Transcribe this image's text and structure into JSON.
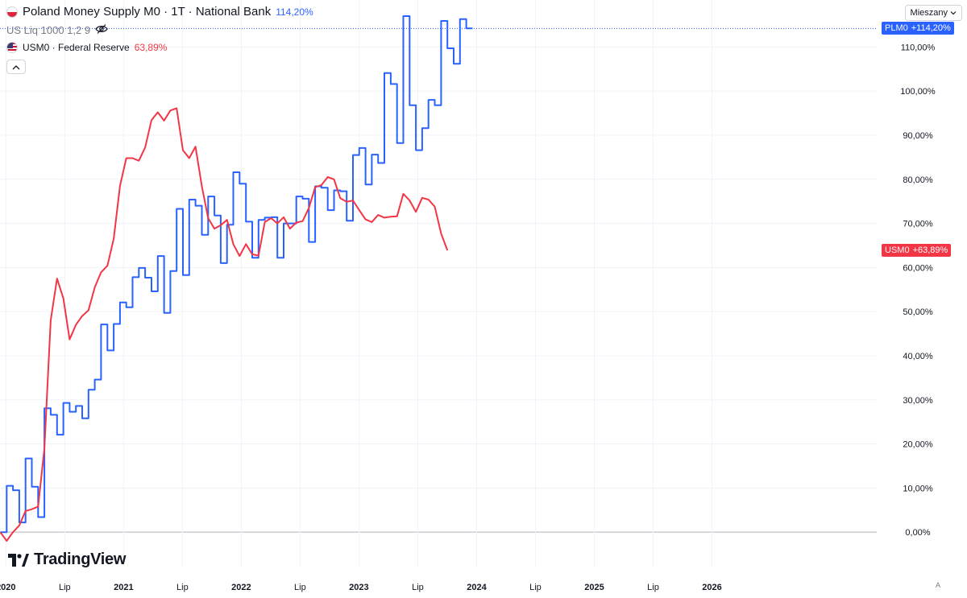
{
  "legend": {
    "main": {
      "title": "Poland Money Supply M0 · 1T · National Bank",
      "value": "114,20%"
    },
    "indicator": {
      "title": "US Liq 1000 1,2 9"
    },
    "compare": {
      "title": "USM0 · Federal Reserve",
      "value": "63,89%"
    }
  },
  "scale_mode": "Mieszany",
  "watermark": "TradingView",
  "auto_label": "A",
  "colors": {
    "plm0": "#2962ff",
    "usm0": "#f23645",
    "grid": "#f0f3fa",
    "axis_text": "#131722"
  },
  "icons": {
    "hide": "eye-off-icon",
    "collapse": "chevron-up-icon",
    "dropdown": "chevron-down-icon"
  },
  "badges": {
    "plm0": {
      "code": "PLM0",
      "value": "+114,20%"
    },
    "usm0": {
      "code": "USM0",
      "value": "+63,89%"
    }
  },
  "chart_data": {
    "type": "line",
    "x_unit": "years",
    "xlim": [
      2019.95,
      2027.4
    ],
    "ylim": [
      -8,
      117
    ],
    "y_ticks": [
      0,
      10,
      20,
      30,
      40,
      50,
      60,
      70,
      80,
      90,
      100,
      110
    ],
    "y_tick_labels": [
      "0,00%",
      "10,00%",
      "20,00%",
      "30,00%",
      "40,00%",
      "50,00%",
      "60,00%",
      "70,00%",
      "80,00%",
      "90,00%",
      "100,00%",
      "110,00%"
    ],
    "x_ticks": [
      {
        "x": 2020.0,
        "label": "2020",
        "bold": true
      },
      {
        "x": 2020.5,
        "label": "Lip",
        "bold": false
      },
      {
        "x": 2021.0,
        "label": "2021",
        "bold": true
      },
      {
        "x": 2021.5,
        "label": "Lip",
        "bold": false
      },
      {
        "x": 2022.0,
        "label": "2022",
        "bold": true
      },
      {
        "x": 2022.5,
        "label": "Lip",
        "bold": false
      },
      {
        "x": 2023.0,
        "label": "2023",
        "bold": true
      },
      {
        "x": 2023.5,
        "label": "Lip",
        "bold": false
      },
      {
        "x": 2024.0,
        "label": "2024",
        "bold": true
      },
      {
        "x": 2024.5,
        "label": "Lip",
        "bold": false
      },
      {
        "x": 2025.0,
        "label": "2025",
        "bold": true
      },
      {
        "x": 2025.5,
        "label": "Lip",
        "bold": false
      },
      {
        "x": 2026.0,
        "label": "2026",
        "bold": true
      }
    ],
    "reference_line": 114.2,
    "grid": true,
    "series": [
      {
        "name": "PLM0",
        "style": "step",
        "start_year": 2019.953,
        "step_years": 0.0535,
        "values": [
          0,
          10.5,
          9.5,
          2.2,
          16.7,
          10.3,
          3.4,
          28.1,
          26.6,
          22.1,
          29.3,
          27.3,
          28.6,
          25.8,
          32.3,
          34.6,
          47.1,
          41.2,
          47.2,
          52.1,
          51.0,
          57.8,
          59.9,
          57.7,
          54.6,
          62.6,
          49.7,
          59.2,
          73.3,
          58.3,
          75.4,
          74.0,
          67.4,
          76.1,
          71.8,
          61.0,
          69.7,
          81.6,
          79.0,
          70.4,
          62.2,
          70.8,
          71.3,
          71.4,
          62.2,
          70.0,
          70.0,
          76.1,
          75.6,
          65.8,
          78.4,
          78.1,
          73.0,
          77.5,
          77.3,
          70.6,
          85.5,
          87.1,
          78.8,
          85.6,
          83.7,
          104.1,
          101.6,
          88.2,
          117.0,
          96.8,
          86.6,
          91.6,
          98.0,
          96.8,
          115.9,
          109.7,
          106.2,
          116.3,
          114.2
        ]
      },
      {
        "name": "USM0",
        "style": "line",
        "start_year": 2019.953,
        "step_years": 0.0535,
        "values": [
          0,
          -2,
          0,
          1.5,
          4.8,
          5.2,
          5.8,
          19,
          48,
          57.5,
          53,
          43.7,
          47,
          49,
          50.3,
          55.5,
          58.9,
          60.4,
          66.5,
          78.5,
          84.8,
          84.8,
          84.2,
          87.2,
          93.4,
          95.2,
          93.3,
          95.6,
          96.1,
          86.6,
          84.8,
          87.4,
          78.4,
          71.2,
          68.8,
          69.6,
          70.8,
          65.3,
          62.6,
          65.3,
          63,
          62.7,
          70.3,
          71.2,
          70,
          71.4,
          68.8,
          70.2,
          70.5,
          73.5,
          78.2,
          78.7,
          80.5,
          80,
          75.7,
          74.9,
          75.2,
          73,
          70.9,
          70.3,
          71.9,
          71.3,
          71.5,
          71.6,
          76.7,
          75.2,
          72.6,
          75.8,
          75.4,
          73.8,
          67.7,
          63.9
        ]
      }
    ]
  }
}
